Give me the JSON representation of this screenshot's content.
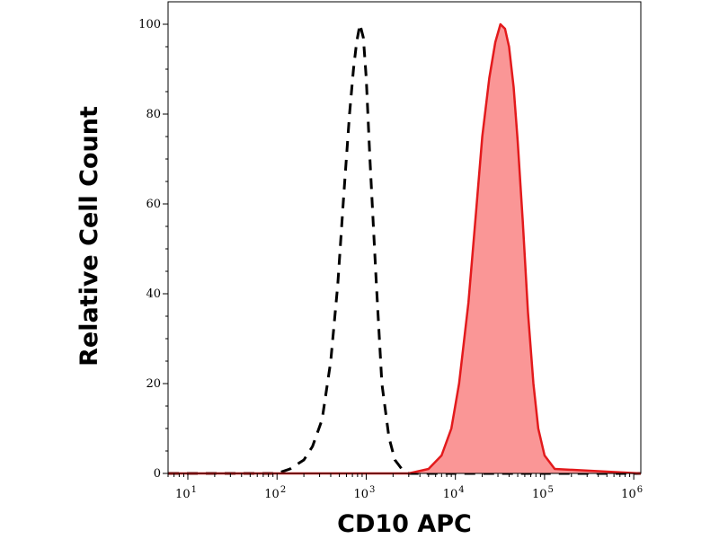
{
  "chart_data": {
    "type": "area",
    "title": "",
    "xlabel": "CD10 APC",
    "ylabel": "Relative Cell Count",
    "x_scale": "log",
    "xlim": [
      6,
      1200000
    ],
    "ylim": [
      0,
      105
    ],
    "grid": false,
    "legend": "none",
    "x_ticks": [
      {
        "base": "10",
        "exp": "1",
        "value": 10
      },
      {
        "base": "10",
        "exp": "2",
        "value": 100
      },
      {
        "base": "10",
        "exp": "3",
        "value": 1000
      },
      {
        "base": "10",
        "exp": "4",
        "value": 10000
      },
      {
        "base": "10",
        "exp": "5",
        "value": 100000
      },
      {
        "base": "10",
        "exp": "6",
        "value": 1000000
      }
    ],
    "y_ticks": [
      0,
      20,
      40,
      60,
      80,
      100
    ],
    "series": [
      {
        "style": "dashed",
        "color": "#000000",
        "fill": "none",
        "x": [
          6,
          100,
          140,
          200,
          250,
          320,
          400,
          480,
          560,
          650,
          720,
          780,
          850,
          930,
          1000,
          1100,
          1300,
          1500,
          1800,
          2100,
          2500,
          3000,
          3600,
          5000,
          1200000
        ],
        "y": [
          0,
          0,
          1,
          3,
          6,
          12,
          25,
          42,
          62,
          80,
          90,
          96,
          100,
          97,
          88,
          70,
          42,
          20,
          8,
          3,
          1,
          0,
          0,
          0,
          0
        ]
      },
      {
        "style": "solid",
        "color": "#e31a1c",
        "fill": "#fa9696",
        "x": [
          6,
          3000,
          5000,
          7000,
          9000,
          11000,
          14000,
          17000,
          20000,
          24000,
          28000,
          32000,
          36000,
          40000,
          45000,
          50000,
          57000,
          65000,
          75000,
          85000,
          100000,
          130000,
          1200000
        ],
        "y": [
          0,
          0,
          1,
          4,
          10,
          20,
          38,
          58,
          75,
          88,
          96,
          100,
          99,
          95,
          86,
          74,
          56,
          36,
          20,
          10,
          4,
          1,
          0
        ]
      }
    ]
  }
}
